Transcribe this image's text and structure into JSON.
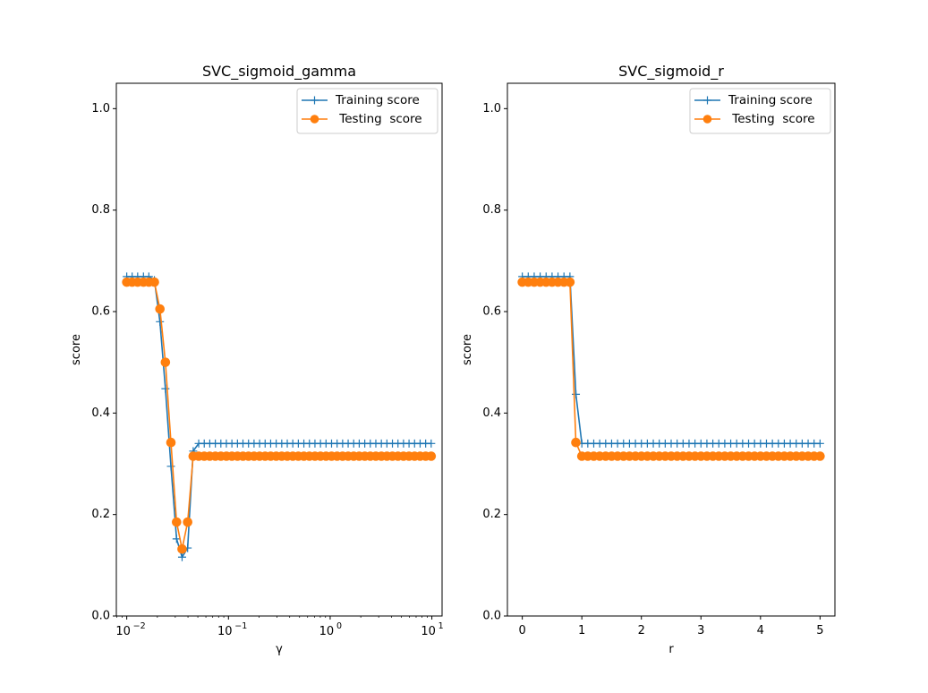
{
  "chart_data": [
    {
      "type": "line",
      "title": "SVC_sigmoid_gamma",
      "xlabel": "γ",
      "ylabel": "score",
      "xscale": "log",
      "xlim": [
        0.0079,
        12.6
      ],
      "ylim": [
        0.0,
        1.05
      ],
      "xticks": [
        0.01,
        0.1,
        1,
        10
      ],
      "xtick_labels": [
        "10",
        "10",
        "10",
        "10"
      ],
      "xtick_exponents": [
        "−2",
        "−1",
        "0",
        "1"
      ],
      "yticks": [
        0.0,
        0.2,
        0.4,
        0.6,
        0.8,
        1.0
      ],
      "ytick_labels": [
        "0.0",
        "0.2",
        "0.4",
        "0.6",
        "0.8",
        "1.0"
      ],
      "legend_position": "upper right",
      "x": [
        0.01,
        0.0113,
        0.0128,
        0.0146,
        0.0165,
        0.0187,
        0.0212,
        0.024,
        0.0272,
        0.0309,
        0.035,
        0.0397,
        0.045,
        0.051,
        0.0578,
        0.0655,
        0.0743,
        0.0842,
        0.0954,
        0.1081,
        0.1226,
        0.1389,
        0.1575,
        0.1785,
        0.2024,
        0.2294,
        0.26,
        0.2947,
        0.3341,
        0.3787,
        0.4292,
        0.4866,
        0.5515,
        0.6251,
        0.7086,
        0.8032,
        0.9104,
        1.032,
        1.1698,
        1.326,
        1.503,
        1.7036,
        1.9311,
        2.1889,
        2.4811,
        2.8123,
        3.1878,
        3.6134,
        4.0958,
        4.6426,
        5.2624,
        5.965,
        6.7613,
        7.6639,
        8.687,
        9.8468
      ],
      "series": [
        {
          "name": "Training score",
          "color": "#1f77b4",
          "marker": "plus",
          "values": [
            0.669,
            0.669,
            0.669,
            0.669,
            0.669,
            0.662,
            0.58,
            0.448,
            0.295,
            0.152,
            0.116,
            0.134,
            0.325,
            0.34,
            0.34,
            0.34,
            0.34,
            0.34,
            0.34,
            0.34,
            0.34,
            0.34,
            0.34,
            0.34,
            0.34,
            0.34,
            0.34,
            0.34,
            0.34,
            0.34,
            0.34,
            0.34,
            0.34,
            0.34,
            0.34,
            0.34,
            0.34,
            0.34,
            0.34,
            0.34,
            0.34,
            0.34,
            0.34,
            0.34,
            0.34,
            0.34,
            0.34,
            0.34,
            0.34,
            0.34,
            0.34,
            0.34,
            0.34,
            0.34,
            0.34,
            0.34
          ]
        },
        {
          "name": " Testing  score",
          "color": "#ff7f0e",
          "marker": "circle",
          "values": [
            0.658,
            0.658,
            0.658,
            0.658,
            0.658,
            0.658,
            0.605,
            0.5,
            0.342,
            0.185,
            0.132,
            0.185,
            0.315,
            0.315,
            0.315,
            0.315,
            0.315,
            0.315,
            0.315,
            0.315,
            0.315,
            0.315,
            0.315,
            0.315,
            0.315,
            0.315,
            0.315,
            0.315,
            0.315,
            0.315,
            0.315,
            0.315,
            0.315,
            0.315,
            0.315,
            0.315,
            0.315,
            0.315,
            0.315,
            0.315,
            0.315,
            0.315,
            0.315,
            0.315,
            0.315,
            0.315,
            0.315,
            0.315,
            0.315,
            0.315,
            0.315,
            0.315,
            0.315,
            0.315,
            0.315,
            0.315
          ]
        }
      ]
    },
    {
      "type": "line",
      "title": "SVC_sigmoid_r",
      "xlabel": "r",
      "ylabel": "score",
      "xscale": "linear",
      "xlim": [
        -0.25,
        5.25
      ],
      "ylim": [
        0.0,
        1.05
      ],
      "xticks": [
        0,
        1,
        2,
        3,
        4,
        5
      ],
      "xtick_labels": [
        "0",
        "1",
        "2",
        "3",
        "4",
        "5"
      ],
      "yticks": [
        0.0,
        0.2,
        0.4,
        0.6,
        0.8,
        1.0
      ],
      "ytick_labels": [
        "0.0",
        "0.2",
        "0.4",
        "0.6",
        "0.8",
        "1.0"
      ],
      "legend_position": "upper right",
      "x": [
        0,
        0.1,
        0.2,
        0.3,
        0.4,
        0.5,
        0.6,
        0.7,
        0.8,
        0.9,
        1.0,
        1.1,
        1.2,
        1.3,
        1.4,
        1.5,
        1.6,
        1.7,
        1.8,
        1.9,
        2.0,
        2.1,
        2.2,
        2.3,
        2.4,
        2.5,
        2.6,
        2.7,
        2.8,
        2.9,
        3.0,
        3.1,
        3.2,
        3.3,
        3.4,
        3.5,
        3.6,
        3.7,
        3.8,
        3.9,
        4.0,
        4.1,
        4.2,
        4.3,
        4.4,
        4.5,
        4.6,
        4.7,
        4.8,
        4.9,
        5.0
      ],
      "series": [
        {
          "name": "Training score",
          "color": "#1f77b4",
          "marker": "plus",
          "values": [
            0.669,
            0.669,
            0.669,
            0.669,
            0.669,
            0.669,
            0.669,
            0.669,
            0.669,
            0.437,
            0.34,
            0.34,
            0.34,
            0.34,
            0.34,
            0.34,
            0.34,
            0.34,
            0.34,
            0.34,
            0.34,
            0.34,
            0.34,
            0.34,
            0.34,
            0.34,
            0.34,
            0.34,
            0.34,
            0.34,
            0.34,
            0.34,
            0.34,
            0.34,
            0.34,
            0.34,
            0.34,
            0.34,
            0.34,
            0.34,
            0.34,
            0.34,
            0.34,
            0.34,
            0.34,
            0.34,
            0.34,
            0.34,
            0.34,
            0.34,
            0.34
          ]
        },
        {
          "name": " Testing  score",
          "color": "#ff7f0e",
          "marker": "circle",
          "values": [
            0.658,
            0.658,
            0.658,
            0.658,
            0.658,
            0.658,
            0.658,
            0.658,
            0.658,
            0.342,
            0.315,
            0.315,
            0.315,
            0.315,
            0.315,
            0.315,
            0.315,
            0.315,
            0.315,
            0.315,
            0.315,
            0.315,
            0.315,
            0.315,
            0.315,
            0.315,
            0.315,
            0.315,
            0.315,
            0.315,
            0.315,
            0.315,
            0.315,
            0.315,
            0.315,
            0.315,
            0.315,
            0.315,
            0.315,
            0.315,
            0.315,
            0.315,
            0.315,
            0.315,
            0.315,
            0.315,
            0.315,
            0.315,
            0.315,
            0.315,
            0.315
          ]
        }
      ]
    }
  ]
}
